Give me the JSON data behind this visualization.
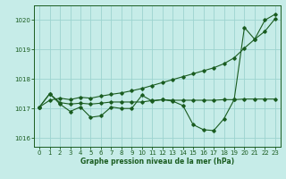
{
  "background_color": "#c6ece8",
  "grid_color": "#9dd4d0",
  "line_color": "#1a5c20",
  "title": "Graphe pression niveau de la mer (hPa)",
  "ylim": [
    1015.7,
    1020.5
  ],
  "xlim": [
    -0.5,
    23.5
  ],
  "yticks": [
    1016,
    1017,
    1018,
    1019,
    1020
  ],
  "xticks": [
    0,
    1,
    2,
    3,
    4,
    5,
    6,
    7,
    8,
    9,
    10,
    11,
    12,
    13,
    14,
    15,
    16,
    17,
    18,
    19,
    20,
    21,
    22,
    23
  ],
  "series1_x": [
    0,
    1,
    2,
    3,
    4,
    5,
    6,
    7,
    8,
    9,
    10,
    11,
    12,
    13,
    14,
    15,
    16,
    17,
    18,
    19,
    20,
    21,
    22,
    23
  ],
  "series1_y": [
    1017.05,
    1017.5,
    1017.15,
    1016.9,
    1017.05,
    1016.7,
    1016.75,
    1017.05,
    1017.0,
    1017.0,
    1017.45,
    1017.25,
    1017.3,
    1017.25,
    1017.1,
    1016.45,
    1016.28,
    1016.25,
    1016.65,
    1017.3,
    1019.75,
    1019.35,
    1020.0,
    1020.2
  ],
  "series2_x": [
    0,
    1,
    2,
    3,
    4,
    5,
    6,
    7,
    8,
    9,
    10,
    11,
    12,
    13,
    14,
    15,
    16,
    17,
    18,
    19,
    20,
    21,
    22,
    23
  ],
  "series2_y": [
    1017.05,
    1017.5,
    1017.2,
    1017.15,
    1017.18,
    1017.15,
    1017.18,
    1017.22,
    1017.22,
    1017.22,
    1017.22,
    1017.27,
    1017.3,
    1017.28,
    1017.28,
    1017.28,
    1017.28,
    1017.28,
    1017.3,
    1017.3,
    1017.32,
    1017.32,
    1017.32,
    1017.32
  ],
  "series3_x": [
    0,
    1,
    2,
    3,
    4,
    5,
    6,
    7,
    8,
    9,
    10,
    11,
    12,
    13,
    14,
    15,
    16,
    17,
    18,
    19,
    20,
    21,
    22,
    23
  ],
  "series3_y": [
    1017.05,
    1017.28,
    1017.35,
    1017.3,
    1017.38,
    1017.35,
    1017.42,
    1017.48,
    1017.53,
    1017.6,
    1017.68,
    1017.78,
    1017.88,
    1017.98,
    1018.08,
    1018.18,
    1018.28,
    1018.38,
    1018.52,
    1018.72,
    1019.05,
    1019.35,
    1019.62,
    1020.05
  ],
  "marker": "D",
  "markersize": 1.8,
  "linewidth": 0.8
}
